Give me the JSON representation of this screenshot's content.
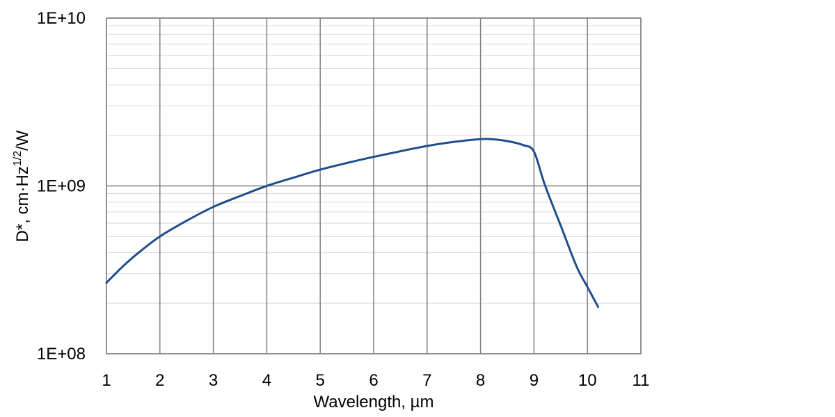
{
  "chart_data": {
    "type": "line",
    "xlabel": "Wavelength, µm",
    "ylabel": {
      "prefix": "D*, cm·Hz",
      "superscript": "1/2",
      "suffix": "/W"
    },
    "xlim": [
      1,
      11
    ],
    "ylim": [
      100000000,
      10000000000
    ],
    "yscale": "log",
    "grid": true,
    "x_ticks": [
      "1",
      "2",
      "3",
      "4",
      "5",
      "6",
      "7",
      "8",
      "9",
      "10",
      "11"
    ],
    "y_ticks": [
      {
        "value": 100000000,
        "label": "1E+08"
      },
      {
        "value": 1000000000,
        "label": "1E+09"
      },
      {
        "value": 10000000000,
        "label": "1E+10"
      }
    ],
    "series": [
      {
        "color": "#1f4e8c",
        "x": [
          1.0,
          1.3,
          1.6,
          2.0,
          2.5,
          3.0,
          3.5,
          4.0,
          4.5,
          5.0,
          5.5,
          6.0,
          6.5,
          7.0,
          7.5,
          8.0,
          8.2,
          8.5,
          8.8,
          9.0,
          9.2,
          9.5,
          9.8,
          10.0,
          10.2
        ],
        "y": [
          265000000,
          330000000,
          400000000,
          500000000,
          620000000,
          750000000,
          870000000,
          1000000000,
          1120000000,
          1250000000,
          1370000000,
          1490000000,
          1610000000,
          1730000000,
          1830000000,
          1900000000,
          1900000000,
          1850000000,
          1750000000,
          1600000000,
          1020000000,
          580000000,
          330000000,
          250000000,
          190000000
        ]
      }
    ]
  }
}
